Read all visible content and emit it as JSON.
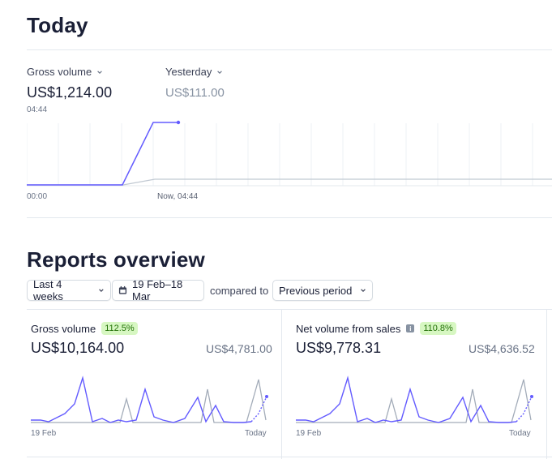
{
  "today": {
    "title": "Today",
    "gross_volume_label": "Gross volume",
    "gross_volume_value": "US$1,214.00",
    "gross_volume_time": "04:44",
    "yesterday_label": "Yesterday",
    "yesterday_value": "US$111.00",
    "axis_start": "00:00",
    "axis_now": "Now, 04:44",
    "chart_colors": {
      "today": "#635bff",
      "yesterday": "#c1c9d2"
    }
  },
  "reports": {
    "title": "Reports overview",
    "range_label": "Last 4 weeks",
    "date_range": "19 Feb–18 Mar",
    "compared_to_label": "compared to",
    "comparison_label": "Previous period",
    "cards": [
      {
        "label": "Gross volume",
        "badge": "112.5%",
        "value": "US$10,164.00",
        "previous_value": "US$4,781.00",
        "axis_start": "19 Feb",
        "axis_end": "Today"
      },
      {
        "label": "Net volume from sales",
        "badge": "110.8%",
        "value": "US$9,778.31",
        "previous_value": "US$4,636.52",
        "axis_start": "19 Feb",
        "axis_end": "Today"
      }
    ]
  }
}
